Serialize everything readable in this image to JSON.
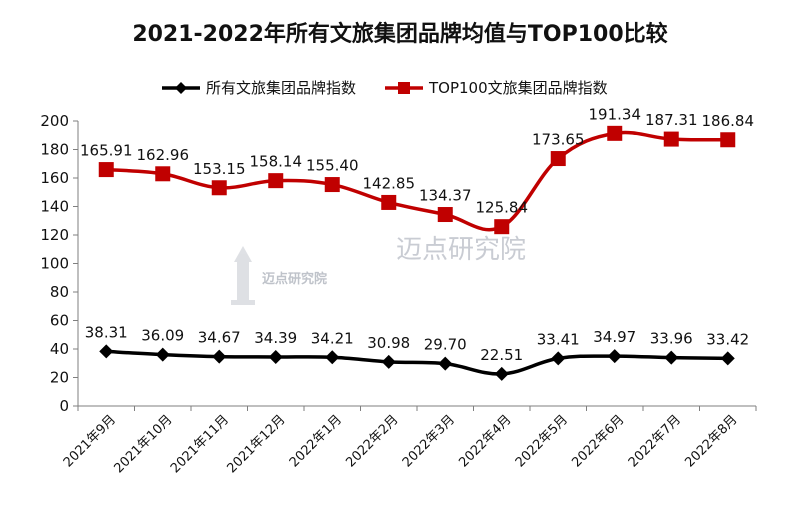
{
  "chart_data": {
    "type": "line",
    "title": "2021-2022年所有文旅集团品牌均值与TOP100比较",
    "categories": [
      "2021年9月",
      "2021年10月",
      "2021年11月",
      "2021年12月",
      "2022年1月",
      "2022年2月",
      "2022年3月",
      "2022年4月",
      "2022年5月",
      "2022年6月",
      "2022年7月",
      "2022年8月"
    ],
    "series": [
      {
        "name": "所有文旅集团品牌指数",
        "color": "#000000",
        "marker": "diamond",
        "values": [
          38.31,
          36.09,
          34.67,
          34.39,
          34.21,
          30.98,
          29.7,
          22.51,
          33.41,
          34.97,
          33.96,
          33.42
        ]
      },
      {
        "name": "TOP100文旅集团品牌指数",
        "color": "#c00000",
        "marker": "square",
        "values": [
          165.91,
          162.96,
          153.15,
          158.14,
          155.4,
          142.85,
          134.37,
          125.84,
          173.65,
          191.34,
          187.31,
          186.84
        ]
      }
    ],
    "xlabel": "",
    "ylabel": "",
    "ylim": [
      0,
      200
    ],
    "yticks": [
      0,
      20,
      40,
      60,
      80,
      100,
      120,
      140,
      160,
      180,
      200
    ],
    "grid": false,
    "legend": "top"
  },
  "watermark": {
    "text": "迈点研究院",
    "small": "迈点研究院"
  }
}
